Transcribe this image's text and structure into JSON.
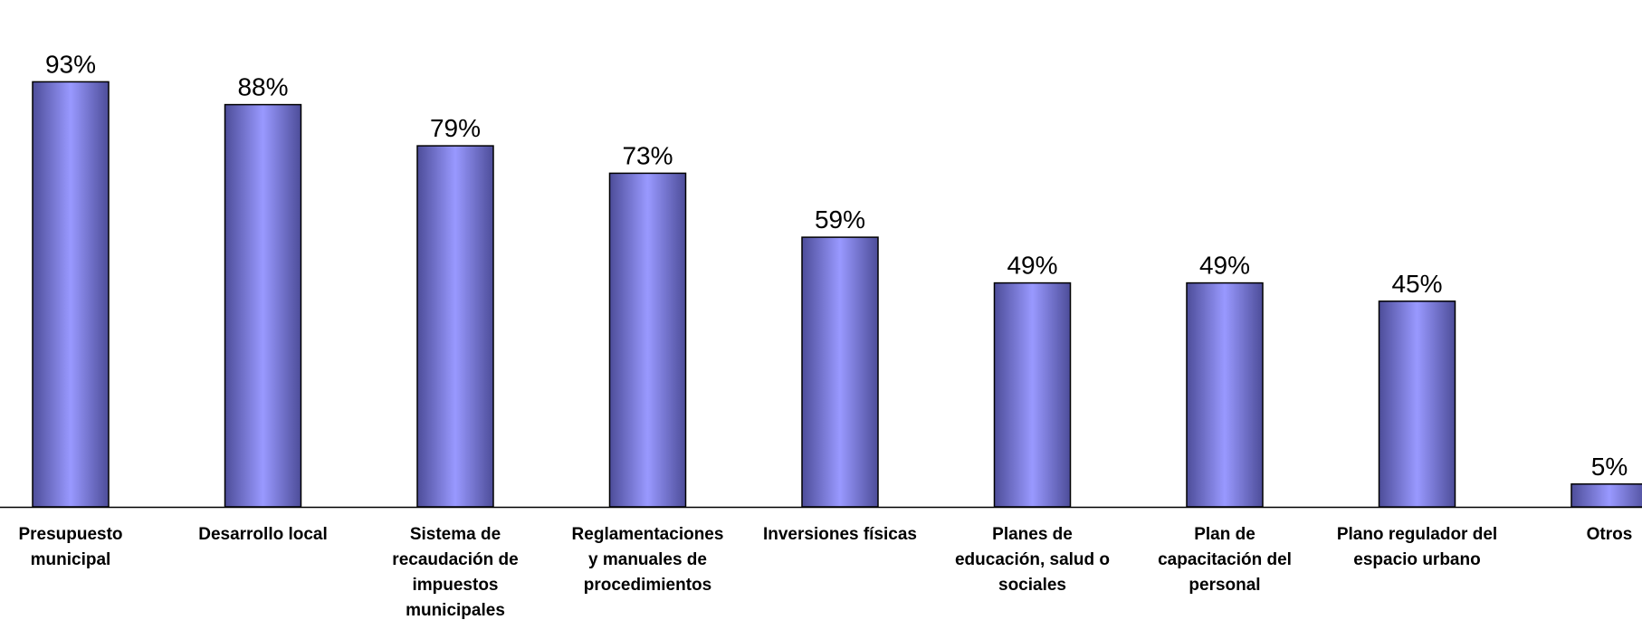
{
  "chart_data": {
    "type": "bar",
    "title": "",
    "xlabel": "",
    "ylabel": "",
    "ylim": [
      0,
      100
    ],
    "grid": false,
    "legend": "none",
    "bar_color_center": "#9999FF",
    "bar_color_edge": "#4D4D99",
    "bar_border_color": "#000000",
    "axis_color": "#000000",
    "value_suffix": "%",
    "categories": [
      "Presupuesto municipal",
      "Desarrollo local",
      "Sistema de recaudación de impuestos municipales",
      "Reglamentaciones y manuales de procedimientos",
      "Inversiones físicas",
      "Planes de educación, salud o sociales",
      "Plan de capacitación del personal",
      "Plano regulador del espacio urbano",
      "Otros"
    ],
    "category_label_lines": [
      [
        "Presupuesto",
        "municipal"
      ],
      [
        "Desarrollo local"
      ],
      [
        "Sistema de",
        "recaudación de",
        "impuestos",
        "municipales"
      ],
      [
        "Reglamentaciones",
        "y manuales de",
        "procedimientos"
      ],
      [
        "Inversiones físicas"
      ],
      [
        "Planes de",
        "educación, salud o",
        "sociales"
      ],
      [
        "Plan de",
        "capacitación del",
        "personal"
      ],
      [
        "Plano regulador del",
        "espacio urbano"
      ],
      [
        "Otros"
      ]
    ],
    "values": [
      93,
      88,
      79,
      73,
      59,
      49,
      49,
      45,
      5
    ]
  }
}
